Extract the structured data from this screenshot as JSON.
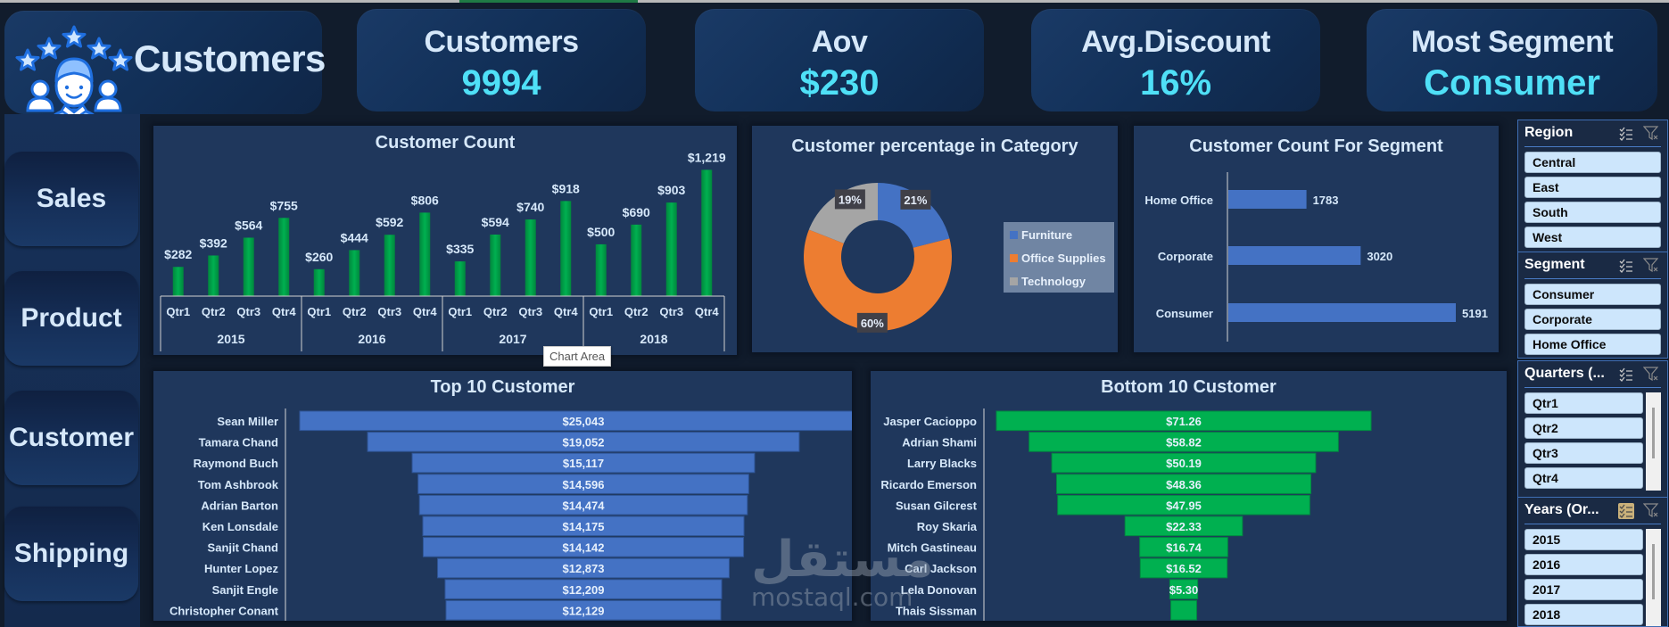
{
  "header": {
    "brand_title": "Customers",
    "brand_icon": "customer-rating-icon"
  },
  "kpis": [
    {
      "label": "Customers",
      "value": "9994"
    },
    {
      "label": "Aov",
      "value": "$230"
    },
    {
      "label": "Avg.Discount",
      "value": "16%"
    },
    {
      "label": "Most Segment",
      "value": "Consumer"
    }
  ],
  "nav": [
    {
      "label": "Sales"
    },
    {
      "label": "Product"
    },
    {
      "label": "Customer"
    },
    {
      "label": "Shipping"
    }
  ],
  "colors": {
    "green_bar": "#00b050",
    "blue_bar": "#4472c4",
    "orange": "#ed7d31",
    "gray": "#a5a5a5",
    "kpi_value": "#4fe0f7",
    "text_light": "#d6e8fa"
  },
  "tooltip": "Chart Area",
  "watermark": {
    "arabic": "مستقل",
    "latin": "mostaql.com"
  },
  "chart_data": [
    {
      "id": "customer_count",
      "type": "bar",
      "title": "Customer Count",
      "groups": [
        "2015",
        "2016",
        "2017",
        "2018"
      ],
      "categories": [
        "Qtr1",
        "Qtr2",
        "Qtr3",
        "Qtr4"
      ],
      "values": [
        282,
        392,
        564,
        755,
        260,
        444,
        592,
        806,
        335,
        594,
        740,
        918,
        500,
        690,
        903,
        1219
      ],
      "labels": [
        "$282",
        "$392",
        "$564",
        "$755",
        "$260",
        "$444",
        "$592",
        "$806",
        "$335",
        "$594",
        "$740",
        "$918",
        "$500",
        "$690",
        "$903",
        "$1,219"
      ],
      "xlabel": "",
      "ylabel": "",
      "ylim": [
        0,
        1300
      ],
      "grid": false,
      "legend": "none"
    },
    {
      "id": "category_pct",
      "type": "pie",
      "subtype": "doughnut",
      "title": "Customer percentage in Category",
      "categories": [
        "Furniture",
        "Office Supplies",
        "Technology"
      ],
      "values": [
        21,
        60,
        19
      ],
      "labels": [
        "21%",
        "60%",
        "19%"
      ],
      "legend": "right"
    },
    {
      "id": "segment_count",
      "type": "bar",
      "orientation": "horizontal",
      "title": "Customer Count  For Segment",
      "categories": [
        "Home Office",
        "Corporate",
        "Consumer"
      ],
      "values": [
        1783,
        3020,
        5191
      ],
      "labels": [
        "1783",
        "3020",
        "5191"
      ],
      "grid": false,
      "legend": "none"
    },
    {
      "id": "top10",
      "type": "bar",
      "subtype": "funnel",
      "title": "Top 10 Customer",
      "categories": [
        "Sean Miller",
        "Tamara Chand",
        "Raymond Buch",
        "Tom Ashbrook",
        "Adrian Barton",
        "Ken Lonsdale",
        "Sanjit Chand",
        "Hunter Lopez",
        "Sanjit Engle",
        "Christopher Conant"
      ],
      "values": [
        25043,
        19052,
        15117,
        14596,
        14474,
        14175,
        14142,
        12873,
        12209,
        12129
      ],
      "labels": [
        "$25,043",
        "$19,052",
        "$15,117",
        "$14,596",
        "$14,474",
        "$14,175",
        "$14,142",
        "$12,873",
        "$12,209",
        "$12,129"
      ]
    },
    {
      "id": "bottom10",
      "type": "bar",
      "subtype": "funnel",
      "title": "Bottom 10 Customer",
      "categories": [
        "Jasper Cacioppo",
        "Adrian Shami",
        "Larry Blacks",
        "Ricardo Emerson",
        "Susan Gilcrest",
        "Roy Skaria",
        "Mitch Gastineau",
        "Carl Jackson",
        "Lela Donovan",
        "Thais Sissman"
      ],
      "values": [
        71.26,
        58.82,
        50.19,
        48.36,
        47.95,
        22.33,
        16.74,
        16.52,
        5.3,
        4.9
      ],
      "labels": [
        "$71.26",
        "$58.82",
        "$50.19",
        "$48.36",
        "$47.95",
        "$22.33",
        "$16.74",
        "$16.52",
        "$5.30",
        ""
      ]
    }
  ],
  "slicers": [
    {
      "title": "Region",
      "items": [
        "Central",
        "East",
        "South",
        "West"
      ],
      "multi_select_active": false
    },
    {
      "title": "Segment",
      "items": [
        "Consumer",
        "Corporate",
        "Home Office"
      ],
      "multi_select_active": false
    },
    {
      "title": "Quarters (...",
      "items": [
        "Qtr1",
        "Qtr2",
        "Qtr3",
        "Qtr4"
      ],
      "multi_select_active": false
    },
    {
      "title": "Years (Or...",
      "items": [
        "2015",
        "2016",
        "2017",
        "2018"
      ],
      "multi_select_active": true
    }
  ]
}
